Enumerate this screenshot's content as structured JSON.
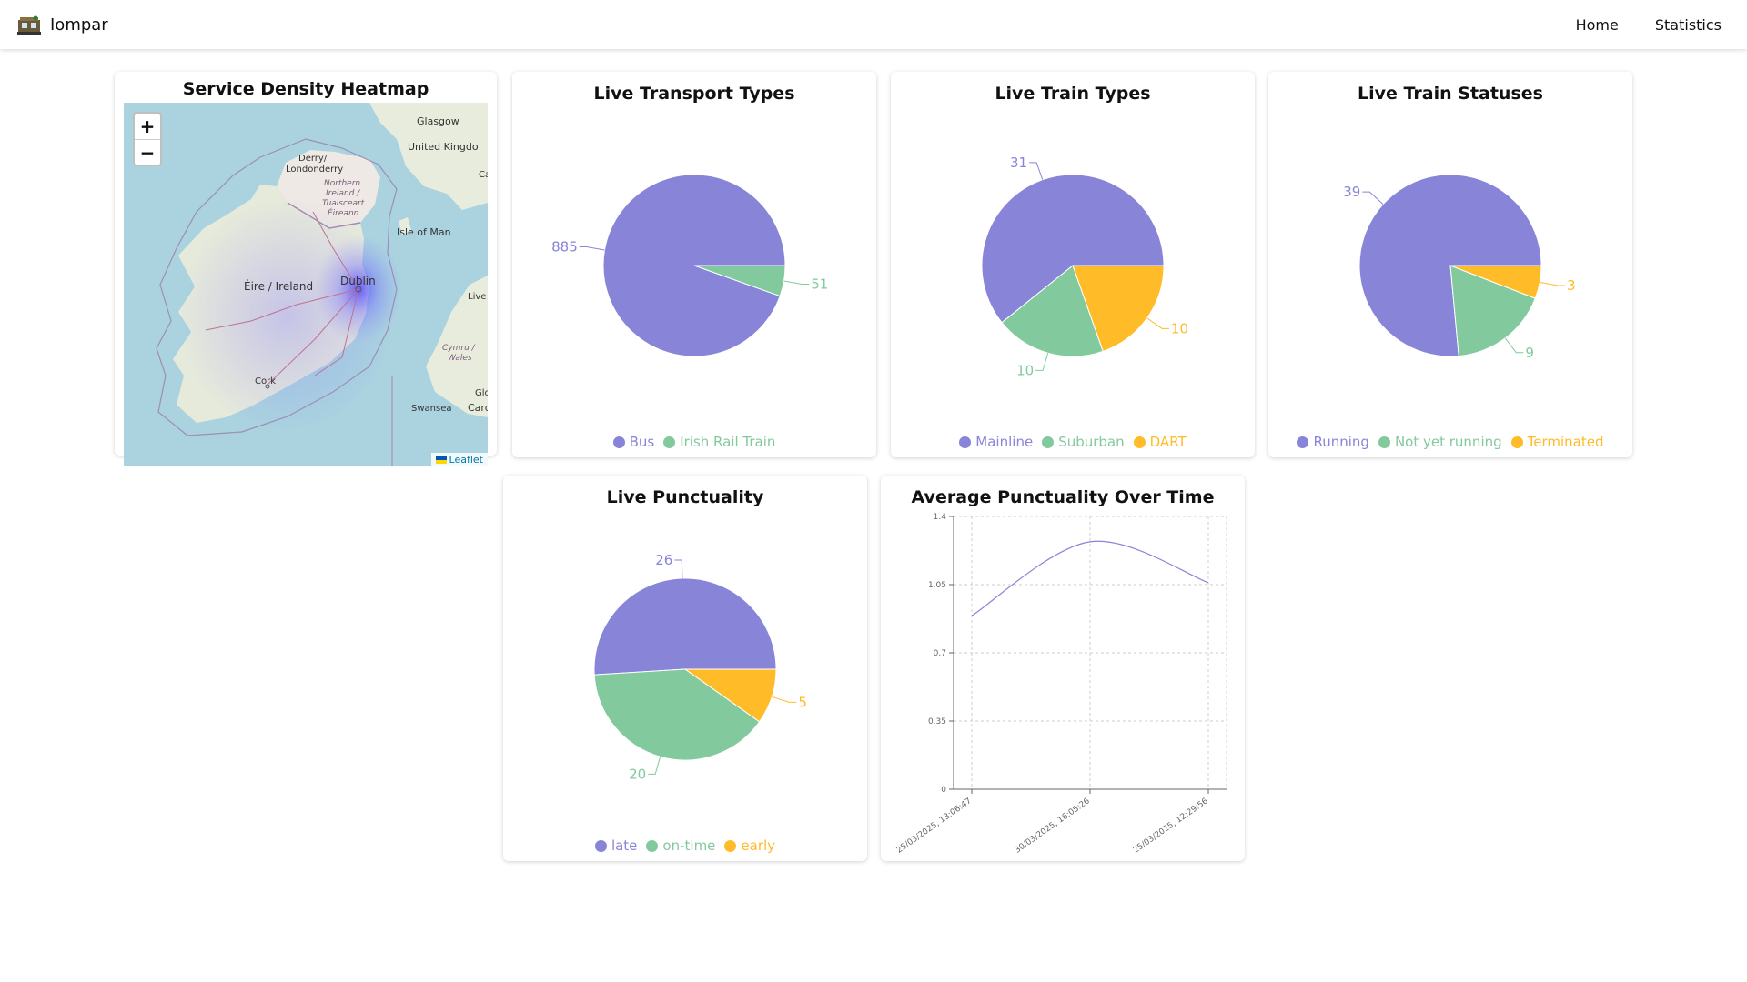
{
  "nav": {
    "brand": "Iompar",
    "brand_icon": "train-station-icon",
    "links": [
      "Home",
      "Statistics"
    ]
  },
  "colors": {
    "purple": "#8884d8",
    "green": "#82ca9d",
    "yellow": "#ffbb28"
  },
  "heatmap": {
    "title": "Service Density Heatmap",
    "zoom_in": "+",
    "zoom_out": "−",
    "attribution": "Leaflet",
    "labels": [
      "Glasgow",
      "United Kingdo",
      "Ca",
      "Derry/",
      "Londonderry",
      "Northern",
      "Ireland /",
      "Tuaisceart",
      "Éireann",
      "Isle of Man",
      "Éire / Ireland",
      "Dublin",
      "Live",
      "Cymru /",
      "Wales",
      "Cork",
      "Glo",
      "Swansea",
      "Card"
    ]
  },
  "charts": {
    "transport_types": {
      "title": "Live Transport Types",
      "chart_data": {
        "type": "pie",
        "title": "Live Transport Types",
        "categories": [
          "Bus",
          "Irish Rail Train"
        ],
        "values": [
          885,
          51
        ],
        "legend": "bottom"
      }
    },
    "train_types": {
      "title": "Live Train Types",
      "chart_data": {
        "type": "pie",
        "title": "Live Train Types",
        "categories": [
          "Mainline",
          "Suburban",
          "DART"
        ],
        "values": [
          31,
          10,
          10
        ],
        "legend": "bottom"
      }
    },
    "train_statuses": {
      "title": "Live Train Statuses",
      "chart_data": {
        "type": "pie",
        "title": "Live Train Statuses",
        "categories": [
          "Running",
          "Not yet running",
          "Terminated"
        ],
        "values": [
          39,
          9,
          3
        ],
        "legend": "bottom"
      }
    },
    "punctuality": {
      "title": "Live Punctuality",
      "chart_data": {
        "type": "pie",
        "title": "Live Punctuality",
        "categories": [
          "late",
          "on-time",
          "early"
        ],
        "values": [
          26,
          20,
          5
        ],
        "legend": "bottom"
      }
    },
    "avg_punctuality": {
      "title": "Average Punctuality Over Time",
      "chart_data": {
        "type": "line",
        "title": "Average Punctuality Over Time",
        "x": [
          "25/03/2025, 13:06:47",
          "30/03/2025, 16:05:26",
          "25/03/2025, 12:29:56"
        ],
        "values": [
          0.89,
          1.27,
          1.06
        ],
        "yticks": [
          "0",
          "0.35",
          "0.7",
          "1.05",
          "1.4"
        ],
        "ylim": [
          0,
          1.4
        ],
        "grid": true
      }
    }
  }
}
